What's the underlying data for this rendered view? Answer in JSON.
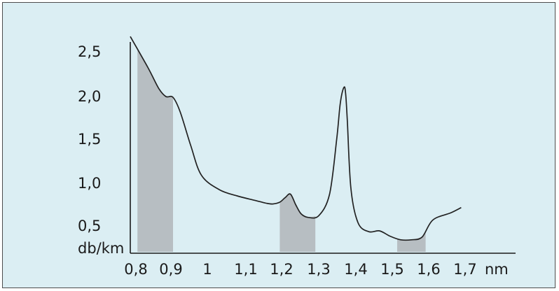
{
  "chart_data": {
    "type": "line",
    "title": "",
    "xlabel": "nm",
    "ylabel": "db/km",
    "x_ticks": [
      "0,8",
      "0,9",
      "1",
      "1,1",
      "1,2",
      "1,3",
      "1,4",
      "1,5",
      "1,6",
      "1,7"
    ],
    "y_ticks": [
      "2,5",
      "2,0",
      "1,5",
      "1,0",
      "0,5"
    ],
    "xlim": [
      0.8,
      1.8
    ],
    "ylim": [
      0.3,
      2.6
    ],
    "grid": false,
    "series": [
      {
        "x": [
          0.8,
          0.85,
          0.88,
          0.9,
          0.92,
          0.94,
          0.97,
          1.0,
          1.05,
          1.1,
          1.15,
          1.18,
          1.2,
          1.22,
          1.235,
          1.25,
          1.265,
          1.28,
          1.3,
          1.33,
          1.36,
          1.38,
          1.39,
          1.4,
          1.405,
          1.41,
          1.42,
          1.44,
          1.47,
          1.5,
          1.53,
          1.56,
          1.59,
          1.62,
          1.65,
          1.7,
          1.73
        ],
        "values": [
          2.6,
          2.25,
          2.02,
          1.93,
          1.92,
          1.76,
          1.38,
          1.05,
          0.89,
          0.82,
          0.77,
          0.74,
          0.73,
          0.75,
          0.8,
          0.84,
          0.72,
          0.62,
          0.58,
          0.6,
          0.84,
          1.45,
          1.85,
          2.03,
          1.97,
          1.65,
          0.9,
          0.52,
          0.42,
          0.43,
          0.37,
          0.33,
          0.33,
          0.36,
          0.55,
          0.63,
          0.69
        ]
      }
    ],
    "shaded_bands": [
      {
        "from": 0.82,
        "to": 0.92
      },
      {
        "from": 1.22,
        "to": 1.32
      },
      {
        "from": 1.55,
        "to": 1.63
      }
    ],
    "colors": {
      "background": "#dbeef3",
      "band": "#b7bec2",
      "line": "#222222"
    }
  }
}
